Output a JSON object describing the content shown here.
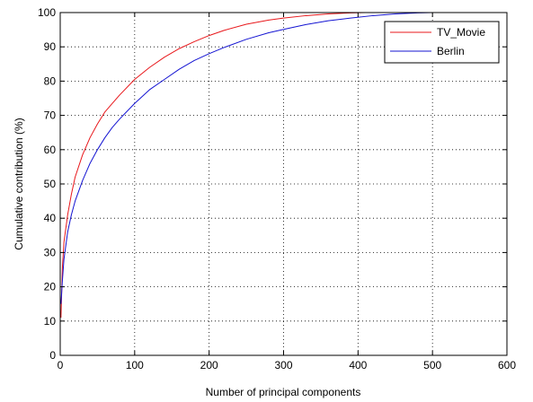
{
  "chart_data": {
    "type": "line",
    "title": "",
    "xlabel": "Number of principal components",
    "ylabel": "Cumulative contribution (%)",
    "xlim": [
      0,
      600
    ],
    "ylim": [
      0,
      100
    ],
    "xticks": [
      0,
      100,
      200,
      300,
      400,
      500,
      600
    ],
    "yticks": [
      0,
      10,
      20,
      30,
      40,
      50,
      60,
      70,
      80,
      90,
      100
    ],
    "grid": true,
    "legend_position": "top-right",
    "series": [
      {
        "name": "TV_Movie",
        "color": "#e8171b",
        "x": [
          1,
          3,
          5,
          10,
          15,
          20,
          30,
          40,
          50,
          60,
          70,
          80,
          100,
          120,
          140,
          160,
          180,
          200,
          220,
          250,
          280,
          300,
          330,
          360,
          390,
          410,
          420
        ],
        "y": [
          11,
          26,
          33,
          41,
          47,
          52,
          58.5,
          63.5,
          67.5,
          71,
          73.5,
          76,
          80.5,
          84,
          87,
          89.5,
          91.5,
          93.3,
          94.8,
          96.6,
          97.8,
          98.4,
          99.1,
          99.6,
          99.9,
          100,
          100
        ]
      },
      {
        "name": "Berlin",
        "color": "#1414d2",
        "x": [
          1,
          3,
          5,
          10,
          15,
          20,
          30,
          40,
          50,
          60,
          70,
          80,
          100,
          120,
          140,
          160,
          180,
          200,
          220,
          250,
          280,
          300,
          330,
          360,
          390,
          420,
          450,
          480,
          500,
          510
        ],
        "y": [
          15,
          22,
          28,
          36,
          41,
          45,
          51,
          56,
          60,
          63.5,
          66.5,
          69,
          73.5,
          77.5,
          80.5,
          83.5,
          86,
          88,
          89.8,
          92.2,
          94.1,
          95.1,
          96.5,
          97.6,
          98.4,
          99.1,
          99.6,
          99.9,
          100,
          100
        ]
      }
    ]
  }
}
